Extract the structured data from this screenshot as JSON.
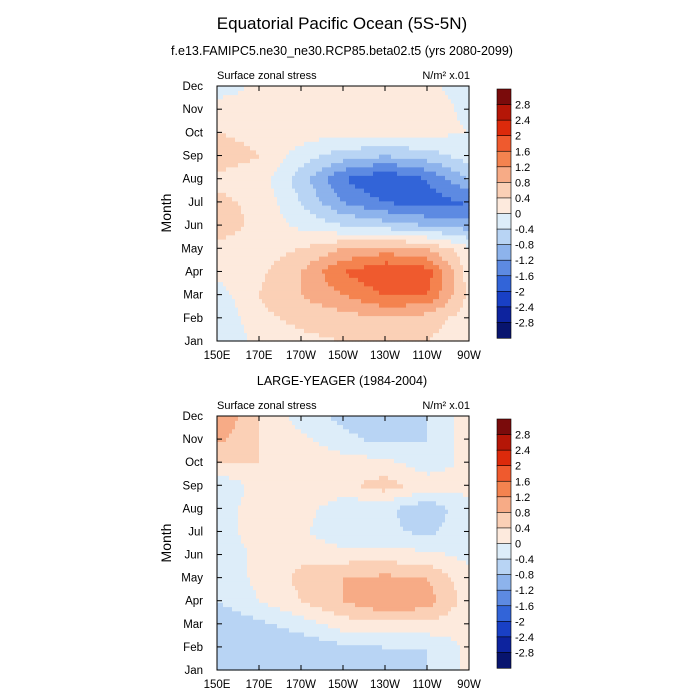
{
  "title": "Equatorial Pacific Ocean (5S-5N)",
  "colorbar_levels": [
    "2.8",
    "2.4",
    "2",
    "1.6",
    "1.2",
    "0.8",
    "0.4",
    "0",
    "-0.4",
    "-0.8",
    "-1.2",
    "-1.6",
    "-2",
    "-2.4",
    "-2.8"
  ],
  "colorbar_colors": [
    "#7a0b0b",
    "#b51607",
    "#dc2a0b",
    "#ef5a2e",
    "#f4834f",
    "#f7ab86",
    "#fbd0b6",
    "#fdeadd",
    "#ddedf9",
    "#b8d4f4",
    "#8db3ec",
    "#5d8ae2",
    "#3264d8",
    "#1940c5",
    "#0d239e",
    "#08146e"
  ],
  "chart_data": [
    {
      "type": "heatmap",
      "panel_title": "f.e13.FAMIPC5.ne30_ne30.RCP85.beta02.t5 (yrs 2080-2099)",
      "left_label": "Surface zonal stress",
      "units_label": "N/m² x.01",
      "ylabel": "Month",
      "x": [
        "150E",
        "170E",
        "170W",
        "150W",
        "130W",
        "110W",
        "90W"
      ],
      "y": [
        "Jan",
        "Feb",
        "Mar",
        "Apr",
        "May",
        "Jun",
        "Jul",
        "Aug",
        "Sep",
        "Oct",
        "Nov",
        "Dec"
      ],
      "values": [
        [
          -0.3,
          0.1,
          0.3,
          0.4,
          0.5,
          0.4,
          0.1
        ],
        [
          -0.4,
          0.3,
          0.5,
          0.6,
          0.8,
          0.6,
          0.2
        ],
        [
          -0.2,
          0.4,
          0.8,
          1.2,
          1.6,
          1.6,
          0.3
        ],
        [
          0.1,
          0.3,
          0.8,
          1.6,
          2.0,
          1.8,
          0.2
        ],
        [
          0.3,
          0.2,
          0.4,
          0.8,
          1.0,
          0.8,
          0.1
        ],
        [
          0.6,
          0.3,
          -0.1,
          -0.4,
          -0.6,
          -0.8,
          -1.0
        ],
        [
          0.5,
          0.3,
          -0.4,
          -1.2,
          -1.6,
          -1.8,
          -1.6
        ],
        [
          0.3,
          0.2,
          -0.6,
          -1.6,
          -2.0,
          -1.6,
          -0.8
        ],
        [
          0.6,
          0.4,
          -0.2,
          -0.6,
          -0.8,
          -0.6,
          -0.2
        ],
        [
          0.4,
          0.3,
          0.2,
          0.1,
          0.2,
          0.1,
          0.0
        ],
        [
          0.2,
          0.1,
          0.2,
          0.3,
          0.4,
          0.2,
          -0.1
        ],
        [
          -0.2,
          0.1,
          0.2,
          0.3,
          0.3,
          0.1,
          -0.2
        ]
      ],
      "levels": [
        -2.8,
        -2.4,
        -2,
        -1.6,
        -1.2,
        -0.8,
        -0.4,
        0,
        0.4,
        0.8,
        1.2,
        1.6,
        2,
        2.4,
        2.8
      ]
    },
    {
      "type": "heatmap",
      "panel_title": "LARGE-YEAGER (1984-2004)",
      "left_label": "Surface zonal stress",
      "units_label": "N/m² x.01",
      "ylabel": "Month",
      "x": [
        "150E",
        "170E",
        "170W",
        "150W",
        "130W",
        "110W",
        "90W"
      ],
      "y": [
        "Jan",
        "Feb",
        "Mar",
        "Apr",
        "May",
        "Jun",
        "Jul",
        "Aug",
        "Sep",
        "Oct",
        "Nov",
        "Dec"
      ],
      "values": [
        [
          -0.4,
          -0.5,
          -0.6,
          -0.6,
          -0.5,
          -0.4,
          0.1
        ],
        [
          -0.6,
          -0.8,
          -0.7,
          -0.5,
          -0.4,
          -0.4,
          0.1
        ],
        [
          -0.8,
          -0.5,
          -0.2,
          0.2,
          0.3,
          0.3,
          0.1
        ],
        [
          -0.4,
          0.0,
          0.4,
          0.8,
          1.2,
          1.0,
          0.2
        ],
        [
          -0.3,
          0.1,
          0.5,
          0.8,
          0.9,
          0.8,
          0.1
        ],
        [
          -0.3,
          0.1,
          0.3,
          0.2,
          0.2,
          0.1,
          -0.1
        ],
        [
          -0.2,
          0.2,
          0.1,
          -0.4,
          -0.3,
          -0.5,
          -0.1
        ],
        [
          -0.2,
          0.2,
          0.2,
          -0.3,
          -0.3,
          -0.7,
          -0.1
        ],
        [
          -0.4,
          0.2,
          0.4,
          0.3,
          0.6,
          0.2,
          0.1
        ],
        [
          0.4,
          0.4,
          0.3,
          0.2,
          0.1,
          -0.2,
          0.1
        ],
        [
          0.9,
          0.4,
          0.1,
          -0.3,
          -0.5,
          -0.4,
          0.2
        ],
        [
          1.2,
          0.4,
          -0.2,
          -0.5,
          -0.7,
          -0.4,
          0.2
        ]
      ],
      "levels": [
        -2.8,
        -2.4,
        -2,
        -1.6,
        -1.2,
        -0.8,
        -0.4,
        0,
        0.4,
        0.8,
        1.2,
        1.6,
        2,
        2.4,
        2.8
      ]
    }
  ]
}
